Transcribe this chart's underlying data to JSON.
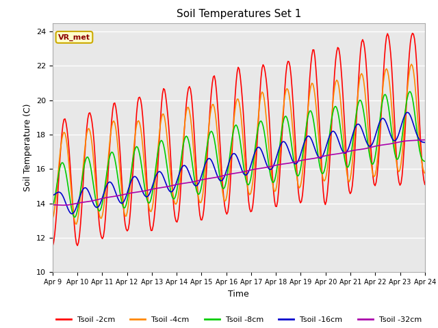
{
  "title": "Soil Temperatures Set 1",
  "xlabel": "Time",
  "ylabel": "Soil Temperature (C)",
  "ylim": [
    10,
    24.5
  ],
  "plot_bg": "#e8e8e8",
  "annotation_text": "VR_met",
  "annotation_color": "#8B0000",
  "annotation_bg": "#ffffcc",
  "annotation_border": "#ccaa00",
  "tick_labels": [
    "Apr 9",
    "Apr 10",
    "Apr 11",
    "Apr 12",
    "Apr 13",
    "Apr 14",
    "Apr 15",
    "Apr 16",
    "Apr 17",
    "Apr 18",
    "Apr 19",
    "Apr 20",
    "Apr 21",
    "Apr 22",
    "Apr 23",
    "Apr 24"
  ],
  "series_colors": [
    "#ff0000",
    "#ff8800",
    "#00cc00",
    "#0000cc",
    "#aa00aa"
  ],
  "series_labels": [
    "Tsoil -2cm",
    "Tsoil -4cm",
    "Tsoil -8cm",
    "Tsoil -16cm",
    "Tsoil -32cm"
  ]
}
